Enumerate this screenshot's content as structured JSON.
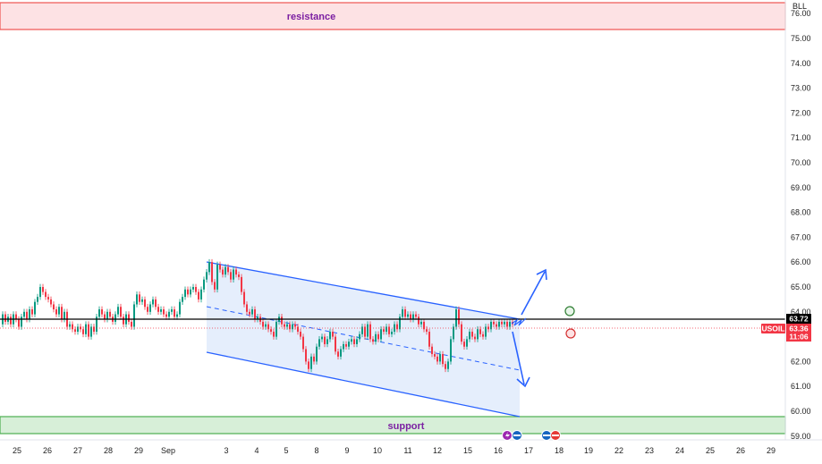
{
  "chart_data": {
    "type": "candlestick",
    "currency": "BLL",
    "ylim": [
      58.85,
      76.35
    ],
    "y_ticks": [
      59,
      60,
      61,
      62,
      63,
      64,
      65,
      66,
      67,
      68,
      69,
      70,
      71,
      72,
      73,
      74,
      75,
      76
    ],
    "x_tick_labels": [
      "25",
      "26",
      "27",
      "28",
      "29",
      "Sep",
      "3",
      "4",
      "5",
      "8",
      "9",
      "10",
      "11",
      "12",
      "15",
      "16",
      "17",
      "18",
      "19",
      "22",
      "23",
      "24",
      "25",
      "26",
      "29"
    ],
    "zones": [
      {
        "name": "resistance",
        "label": "resistance",
        "from": 75.5,
        "to": 76.3,
        "color": "#ef5350"
      },
      {
        "name": "support",
        "label": "support",
        "from": 59.1,
        "to": 59.8,
        "color": "#4caf50"
      }
    ],
    "horizontal_line": {
      "value": 63.72,
      "label": "63.72",
      "color": "#000000"
    },
    "last_price": {
      "symbol": "USOIL",
      "value": "63.36",
      "countdown": "11:06",
      "level": 63.36,
      "color": "#f23645"
    },
    "colors": {
      "up": "#089981",
      "down": "#f23645",
      "channel": "#2962ff",
      "channel_fill": "#dce8fb"
    },
    "price_path": [
      [
        0,
        63.5
      ],
      [
        3,
        63.9
      ],
      [
        6,
        63.6
      ],
      [
        9,
        63.8
      ],
      [
        12,
        63.5
      ],
      [
        15,
        63.9
      ],
      [
        18,
        63.7
      ],
      [
        21,
        63.4
      ],
      [
        24,
        63.8
      ],
      [
        27,
        64.0
      ],
      [
        30,
        63.7
      ],
      [
        33,
        64.1
      ],
      [
        36,
        63.9
      ],
      [
        39,
        64.4
      ],
      [
        42,
        64.6
      ],
      [
        45,
        65.0
      ],
      [
        48,
        64.8
      ],
      [
        51,
        64.6
      ],
      [
        54,
        64.5
      ],
      [
        57,
        64.3
      ],
      [
        60,
        64.1
      ],
      [
        63,
        63.9
      ],
      [
        66,
        64.2
      ],
      [
        69,
        63.7
      ],
      [
        72,
        64.0
      ],
      [
        75,
        63.4
      ],
      [
        78,
        63.5
      ],
      [
        81,
        63.3
      ],
      [
        84,
        63.2
      ],
      [
        87,
        63.4
      ],
      [
        90,
        63.3
      ],
      [
        93,
        63.1
      ],
      [
        96,
        63.5
      ],
      [
        99,
        63.0
      ],
      [
        102,
        63.4
      ],
      [
        105,
        63.2
      ],
      [
        108,
        63.8
      ],
      [
        111,
        64.1
      ],
      [
        114,
        63.9
      ],
      [
        117,
        63.7
      ],
      [
        120,
        64.0
      ],
      [
        123,
        63.8
      ],
      [
        126,
        63.6
      ],
      [
        129,
        63.9
      ],
      [
        132,
        64.2
      ],
      [
        135,
        63.8
      ],
      [
        138,
        63.5
      ],
      [
        141,
        63.9
      ],
      [
        144,
        63.6
      ],
      [
        147,
        63.4
      ],
      [
        150,
        64.3
      ],
      [
        153,
        64.7
      ],
      [
        156,
        64.4
      ],
      [
        159,
        64.5
      ],
      [
        162,
        64.2
      ],
      [
        165,
        64.0
      ],
      [
        168,
        64.3
      ],
      [
        171,
        64.5
      ],
      [
        174,
        64.2
      ],
      [
        177,
        64.0
      ],
      [
        180,
        64.1
      ],
      [
        183,
        63.9
      ],
      [
        186,
        63.8
      ],
      [
        189,
        64.0
      ],
      [
        192,
        64.1
      ],
      [
        195,
        63.8
      ],
      [
        198,
        63.9
      ],
      [
        201,
        64.4
      ],
      [
        204,
        64.6
      ],
      [
        207,
        64.9
      ],
      [
        210,
        64.7
      ],
      [
        213,
        64.9
      ],
      [
        216,
        65.0
      ],
      [
        219,
        64.8
      ],
      [
        222,
        64.5
      ],
      [
        225,
        64.9
      ],
      [
        228,
        65.3
      ],
      [
        231,
        65.6
      ],
      [
        234,
        66.0
      ],
      [
        237,
        65.2
      ],
      [
        240,
        64.9
      ],
      [
        243,
        65.9
      ],
      [
        246,
        65.7
      ],
      [
        249,
        65.5
      ],
      [
        252,
        65.8
      ],
      [
        255,
        65.6
      ],
      [
        258,
        65.3
      ],
      [
        261,
        65.7
      ],
      [
        264,
        65.5
      ],
      [
        267,
        65.4
      ],
      [
        270,
        64.8
      ],
      [
        273,
        64.3
      ],
      [
        276,
        64.0
      ],
      [
        279,
        63.9
      ],
      [
        282,
        64.1
      ],
      [
        285,
        63.7
      ],
      [
        288,
        63.8
      ],
      [
        291,
        63.6
      ],
      [
        294,
        63.4
      ],
      [
        297,
        63.5
      ],
      [
        300,
        63.3
      ],
      [
        303,
        63.2
      ],
      [
        306,
        63.0
      ],
      [
        309,
        63.6
      ],
      [
        312,
        63.8
      ],
      [
        315,
        63.5
      ],
      [
        318,
        63.4
      ],
      [
        321,
        63.5
      ],
      [
        324,
        63.3
      ],
      [
        327,
        63.5
      ],
      [
        330,
        63.4
      ],
      [
        333,
        63.2
      ],
      [
        336,
        63.0
      ],
      [
        339,
        62.5
      ],
      [
        342,
        62.0
      ],
      [
        345,
        61.7
      ],
      [
        348,
        62.2
      ],
      [
        351,
        62.0
      ],
      [
        354,
        62.6
      ],
      [
        357,
        62.9
      ],
      [
        360,
        63.0
      ],
      [
        363,
        62.7
      ],
      [
        366,
        62.9
      ],
      [
        369,
        63.2
      ],
      [
        372,
        63.0
      ],
      [
        375,
        62.4
      ],
      [
        378,
        62.2
      ],
      [
        381,
        62.5
      ],
      [
        384,
        62.7
      ],
      [
        387,
        62.6
      ],
      [
        390,
        62.8
      ],
      [
        393,
        62.9
      ],
      [
        396,
        62.7
      ],
      [
        399,
        62.9
      ],
      [
        402,
        63.1
      ],
      [
        405,
        63.4
      ],
      [
        408,
        63.0
      ],
      [
        411,
        63.5
      ],
      [
        414,
        62.9
      ],
      [
        417,
        62.8
      ],
      [
        420,
        63.1
      ],
      [
        423,
        62.9
      ],
      [
        426,
        63.3
      ],
      [
        429,
        63.2
      ],
      [
        432,
        63.4
      ],
      [
        435,
        63.1
      ],
      [
        438,
        63.2
      ],
      [
        441,
        63.5
      ],
      [
        444,
        63.3
      ],
      [
        447,
        63.8
      ],
      [
        450,
        64.1
      ],
      [
        453,
        63.8
      ],
      [
        456,
        63.9
      ],
      [
        459,
        63.7
      ],
      [
        462,
        63.9
      ],
      [
        465,
        63.8
      ],
      [
        468,
        63.5
      ],
      [
        471,
        63.6
      ],
      [
        474,
        63.3
      ],
      [
        477,
        63.2
      ],
      [
        480,
        62.6
      ],
      [
        483,
        62.3
      ],
      [
        486,
        62.2
      ],
      [
        489,
        62.0
      ],
      [
        492,
        62.3
      ],
      [
        495,
        61.9
      ],
      [
        498,
        61.7
      ],
      [
        501,
        62.0
      ],
      [
        504,
        62.9
      ],
      [
        507,
        63.4
      ],
      [
        510,
        64.1
      ],
      [
        513,
        63.5
      ],
      [
        516,
        62.8
      ],
      [
        519,
        62.6
      ],
      [
        522,
        62.9
      ],
      [
        525,
        63.2
      ],
      [
        528,
        63.0
      ],
      [
        531,
        62.9
      ],
      [
        534,
        63.3
      ],
      [
        537,
        63.1
      ],
      [
        540,
        63.0
      ],
      [
        543,
        63.4
      ],
      [
        546,
        63.3
      ],
      [
        549,
        63.6
      ],
      [
        552,
        63.5
      ],
      [
        555,
        63.4
      ],
      [
        558,
        63.6
      ],
      [
        561,
        63.5
      ],
      [
        564,
        63.6
      ],
      [
        567,
        63.4
      ],
      [
        570,
        63.6
      ],
      [
        573,
        63.5
      ]
    ]
  }
}
